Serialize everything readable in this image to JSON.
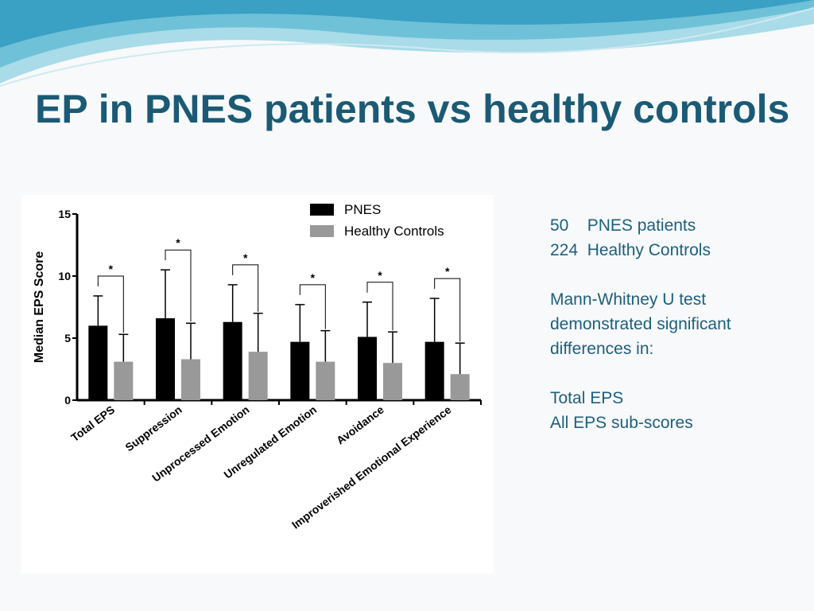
{
  "title": "EP in PNES patients vs healthy controls",
  "side_text": [
    [
      "50    PNES patients",
      "224  Healthy Controls"
    ],
    [
      "Mann-Whitney U test",
      "demonstrated significant",
      "differences in:"
    ],
    [
      "Total EPS",
      "All EPS sub-scores"
    ]
  ],
  "chart_data": {
    "type": "bar",
    "ylabel": "Median EPS Score",
    "categories": [
      "Total EPS",
      "Suppression",
      "Unprocessed Emotion",
      "Unregulated Emotion",
      "Avoidance",
      "Improverished Emotional Experience"
    ],
    "series": [
      {
        "name": "PNES",
        "color": "#000000",
        "values": [
          6.0,
          6.6,
          6.3,
          4.7,
          5.1,
          4.7
        ],
        "errors": [
          2.4,
          3.9,
          3.0,
          3.0,
          2.8,
          3.5
        ]
      },
      {
        "name": "Healthy Controls",
        "color": "#999999",
        "values": [
          3.1,
          3.3,
          3.9,
          3.1,
          3.0,
          2.1
        ],
        "errors": [
          2.2,
          2.9,
          3.1,
          2.5,
          2.5,
          2.5
        ]
      }
    ],
    "annotations": [
      "*",
      "*",
      "*",
      "*",
      "*",
      "*"
    ],
    "ylim": [
      0,
      15
    ],
    "yticks": [
      0,
      5,
      10,
      15
    ],
    "legend": "top-right"
  }
}
